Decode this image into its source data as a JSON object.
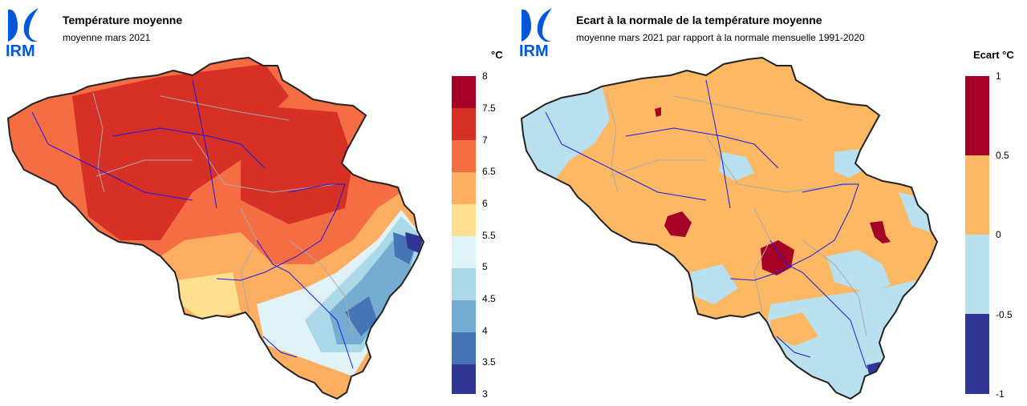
{
  "logo": {
    "text": "IRM",
    "color": "#0057d9",
    "icon": "irm-logo-icon"
  },
  "colors": {
    "border": "#222222",
    "provinces": "#aaaaaa",
    "rivers": "#1a1ae6"
  },
  "panels": [
    {
      "title": "Température moyenne",
      "subtitle": "moyenne mars 2021",
      "unit": "°C",
      "legend": {
        "ticks": [
          "8",
          "7.5",
          "7",
          "6.5",
          "6",
          "5.5",
          "5",
          "4.5",
          "4",
          "3.5",
          "3"
        ],
        "bands_top_to_bottom": [
          "#a50026",
          "#d73027",
          "#f46d43",
          "#fdae61",
          "#fee090",
          "#e0f3f8",
          "#abd9e9",
          "#74add1",
          "#4575b4",
          "#313695"
        ]
      }
    },
    {
      "title": "Ecart à la normale de la température moyenne",
      "subtitle": "moyenne mars 2021 par rapport à la normale mensuelle 1991-2020",
      "unit": "Ecart °C",
      "legend": {
        "ticks": [
          "1",
          "0.5",
          "0",
          "-0.5",
          "-1"
        ],
        "bands_top_to_bottom": [
          "#a50026",
          "#fdb863",
          "#b8e0ee",
          "#313695"
        ]
      }
    }
  ]
}
